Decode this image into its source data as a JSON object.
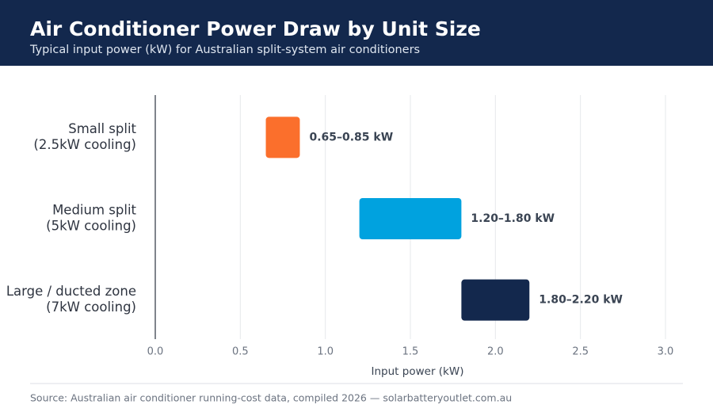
{
  "chart_data": {
    "type": "range-bar",
    "title": "Air Conditioner Power Draw by Unit Size",
    "subtitle": "Typical input power (kW) for Australian split-system air conditioners",
    "categories": [
      [
        "Small split",
        "(2.5kW cooling)"
      ],
      [
        "Medium split",
        "(5kW cooling)"
      ],
      [
        "Large / ducted zone",
        "(7kW cooling)"
      ]
    ],
    "low": [
      0.65,
      1.2,
      1.8
    ],
    "high": [
      0.85,
      1.8,
      2.2
    ],
    "value_labels": [
      "0.65–0.85 kW",
      "1.20–1.80 kW",
      "1.80–2.20 kW"
    ],
    "colors": [
      "#fb6f2c",
      "#00a2df",
      "#13284d"
    ],
    "xlim": [
      0,
      3.0
    ],
    "xticks": [
      {
        "value": 0,
        "label": "0.0"
      },
      {
        "value": 0.5,
        "label": "0.5"
      },
      {
        "value": 1,
        "label": "1.0"
      },
      {
        "value": 1.5,
        "label": "1.5"
      },
      {
        "value": 2,
        "label": "2.0"
      },
      {
        "value": 2.5,
        "label": "2.5"
      },
      {
        "value": 3,
        "label": "3.0"
      }
    ],
    "x_label": "Input power (kW)",
    "grid": true,
    "source": "Source: Australian air conditioner running-cost data, compiled 2026 — solarbatteryoutlet.com.au"
  }
}
